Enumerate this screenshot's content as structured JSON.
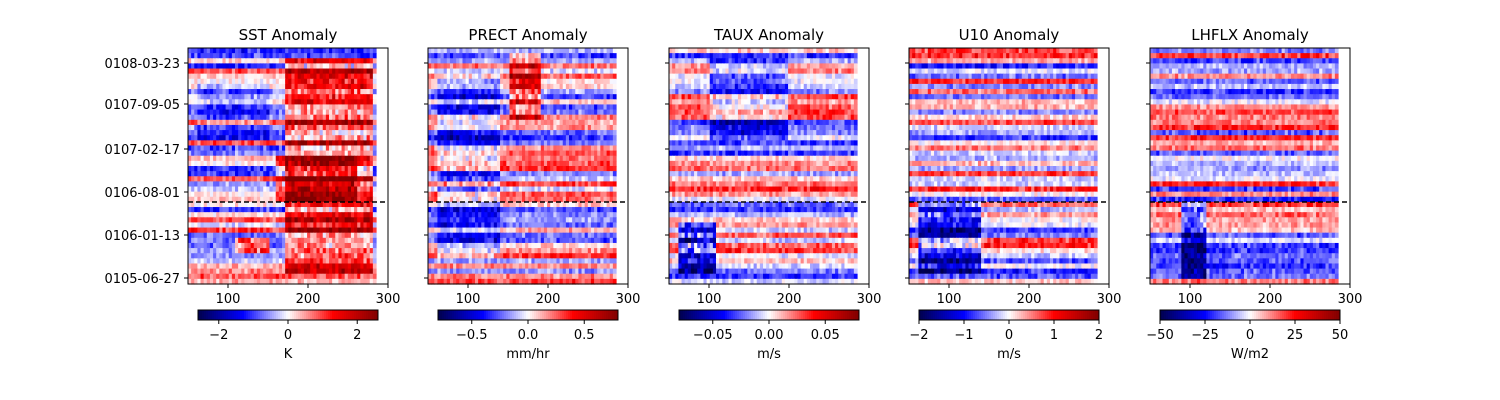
{
  "chart_data": [
    {
      "type": "heatmap",
      "title": "SST Anomaly",
      "xlim": [
        50,
        300
      ],
      "xticks": [
        100,
        200,
        300
      ],
      "yticklabels": [
        "0108-03-23",
        "0107-09-05",
        "0107-02-17",
        "0106-08-01",
        "0106-01-13",
        "0105-06-27"
      ],
      "colormap": "seismic",
      "colorbar": {
        "range": [
          -2.6,
          2.6
        ],
        "ticks": [
          -2,
          0,
          2
        ],
        "tick_labels": [
          "−2",
          "0",
          "2"
        ],
        "label": "K"
      },
      "dashed_line_y": "0106-06",
      "features": [
        {
          "kind": "warm",
          "x": [
            170,
            280
          ],
          "y": [
            0.05,
            0.95
          ],
          "strength": 1.6
        },
        {
          "kind": "warm_diag",
          "x": [
            160,
            260
          ],
          "y": [
            0.35,
            0.55
          ],
          "strength": 1.2
        },
        {
          "kind": "cold",
          "x": [
            60,
            150
          ],
          "y": [
            0.6,
            0.85
          ],
          "strength": -0.6
        },
        {
          "kind": "warm",
          "x": [
            110,
            150
          ],
          "y": [
            0.12,
            0.2
          ],
          "strength": 1.8
        }
      ]
    },
    {
      "type": "heatmap",
      "title": "PRECT Anomaly",
      "xlim": [
        50,
        300
      ],
      "xticks": [
        100,
        200,
        300
      ],
      "colormap": "seismic",
      "colorbar": {
        "range": [
          -0.8,
          0.8
        ],
        "ticks": [
          -0.5,
          0.0,
          0.5
        ],
        "tick_labels": [
          "−0.5",
          "0.0",
          "0.5"
        ],
        "label": "mm/hr"
      },
      "dashed_line_y": "0106-06",
      "features": [
        {
          "kind": "warm",
          "x": [
            150,
            190
          ],
          "y": [
            0.7,
            0.98
          ],
          "strength": 0.5
        },
        {
          "kind": "cold",
          "x": [
            60,
            140
          ],
          "y": [
            0.1,
            0.9
          ],
          "strength": -0.25
        }
      ]
    },
    {
      "type": "heatmap",
      "title": "TAUX Anomaly",
      "xlim": [
        50,
        300
      ],
      "xticks": [
        100,
        200,
        300
      ],
      "colormap": "seismic",
      "colorbar": {
        "range": [
          -0.08,
          0.08
        ],
        "ticks": [
          -0.05,
          0.0,
          0.05
        ],
        "tick_labels": [
          "−0.05",
          "0.00",
          "0.05"
        ],
        "label": "m/s"
      },
      "dashed_line_y": "0106-06",
      "features": [
        {
          "kind": "cold",
          "x": [
            60,
            110
          ],
          "y": [
            0.05,
            0.25
          ],
          "strength": -0.06
        },
        {
          "kind": "cold",
          "x": [
            100,
            200
          ],
          "y": [
            0.6,
            0.95
          ],
          "strength": -0.03
        }
      ]
    },
    {
      "type": "heatmap",
      "title": "U10 Anomaly",
      "xlim": [
        50,
        300
      ],
      "xticks": [
        100,
        200,
        300
      ],
      "colormap": "seismic",
      "colorbar": {
        "range": [
          -2,
          2
        ],
        "ticks": [
          -2,
          -1,
          0,
          1,
          2
        ],
        "tick_labels": [
          "−2",
          "−1",
          "0",
          "1",
          "2"
        ],
        "label": "m/s"
      },
      "dashed_line_y": "0106-06",
      "features": [
        {
          "kind": "cold",
          "x": [
            60,
            140
          ],
          "y": [
            0.05,
            0.35
          ],
          "strength": -1.2
        }
      ]
    },
    {
      "type": "heatmap",
      "title": "LHFLX Anomaly",
      "xlim": [
        50,
        300
      ],
      "xticks": [
        100,
        200,
        300
      ],
      "colormap": "seismic",
      "colorbar": {
        "range": [
          -50,
          50
        ],
        "ticks": [
          -50,
          -25,
          0,
          25,
          50
        ],
        "tick_labels": [
          "−50",
          "−25",
          "0",
          "25",
          "50"
        ],
        "label": "W/m2"
      },
      "dashed_line_y": "0106-06",
      "features": [
        {
          "kind": "cold",
          "x": [
            90,
            120
          ],
          "y": [
            0.02,
            0.35
          ],
          "strength": -30
        }
      ]
    }
  ]
}
